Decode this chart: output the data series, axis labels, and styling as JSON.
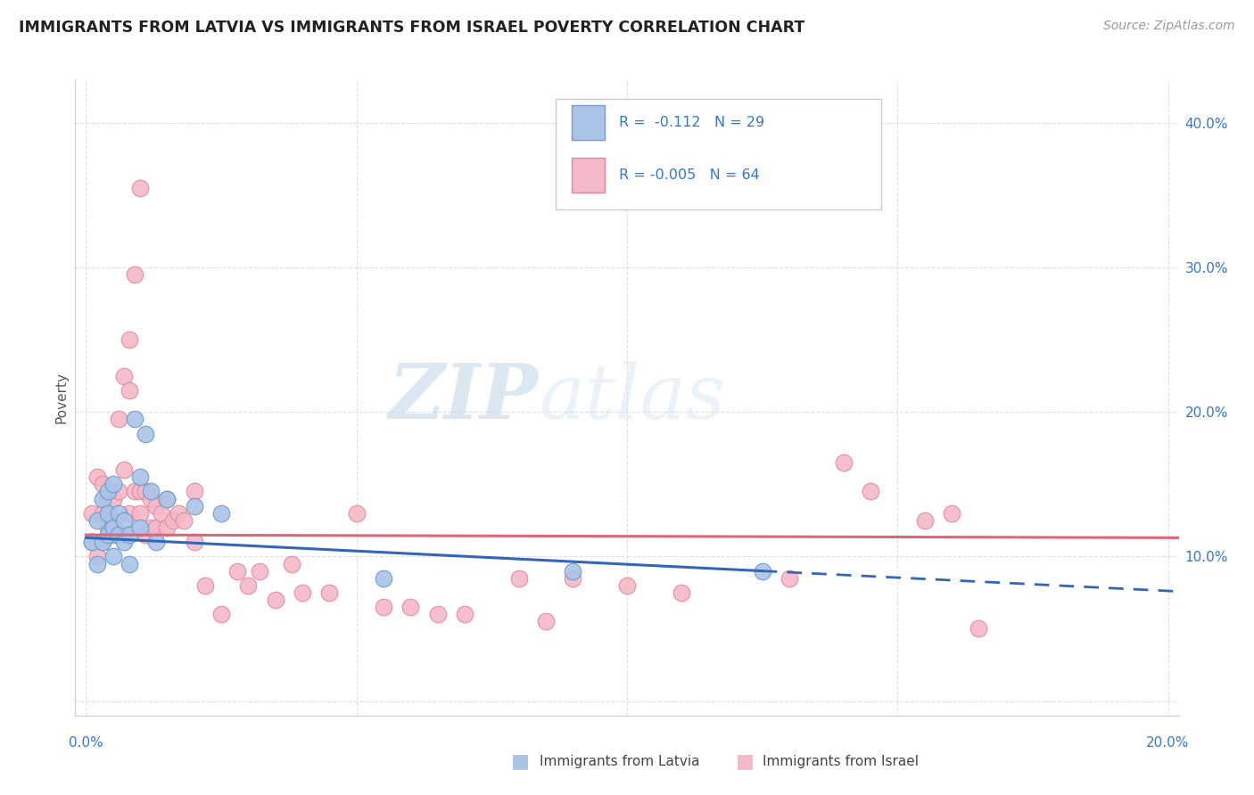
{
  "title": "IMMIGRANTS FROM LATVIA VS IMMIGRANTS FROM ISRAEL POVERTY CORRELATION CHART",
  "source": "Source: ZipAtlas.com",
  "ylabel": "Poverty",
  "y_ticks": [
    0.0,
    0.1,
    0.2,
    0.3,
    0.4
  ],
  "y_tick_labels": [
    "",
    "10.0%",
    "20.0%",
    "30.0%",
    "40.0%"
  ],
  "x_ticks": [
    0.0,
    0.05,
    0.1,
    0.15,
    0.2
  ],
  "xlim": [
    -0.002,
    0.202
  ],
  "ylim": [
    -0.01,
    0.43
  ],
  "watermark_zip": "ZIP",
  "watermark_atlas": "atlas",
  "series1_color": "#aac4e8",
  "series1_edge": "#6699cc",
  "series2_color": "#f5b8c8",
  "series2_edge": "#e08898",
  "trend1_color": "#3366bb",
  "trend2_color": "#dd6677",
  "grid_color": "#e0e0e0",
  "background_color": "#ffffff",
  "scatter1_x": [
    0.001,
    0.002,
    0.002,
    0.003,
    0.003,
    0.004,
    0.004,
    0.004,
    0.005,
    0.005,
    0.005,
    0.006,
    0.006,
    0.007,
    0.007,
    0.008,
    0.008,
    0.009,
    0.01,
    0.01,
    0.011,
    0.012,
    0.013,
    0.015,
    0.02,
    0.025,
    0.055,
    0.09,
    0.125
  ],
  "scatter1_y": [
    0.11,
    0.095,
    0.125,
    0.11,
    0.14,
    0.115,
    0.145,
    0.13,
    0.1,
    0.12,
    0.15,
    0.115,
    0.13,
    0.11,
    0.125,
    0.115,
    0.095,
    0.195,
    0.12,
    0.155,
    0.185,
    0.145,
    0.11,
    0.14,
    0.135,
    0.13,
    0.085,
    0.09,
    0.09
  ],
  "scatter2_x": [
    0.001,
    0.001,
    0.002,
    0.002,
    0.003,
    0.003,
    0.003,
    0.004,
    0.004,
    0.005,
    0.005,
    0.005,
    0.006,
    0.006,
    0.007,
    0.007,
    0.007,
    0.008,
    0.008,
    0.008,
    0.009,
    0.009,
    0.01,
    0.01,
    0.01,
    0.011,
    0.011,
    0.012,
    0.012,
    0.013,
    0.013,
    0.014,
    0.015,
    0.015,
    0.016,
    0.017,
    0.018,
    0.02,
    0.02,
    0.022,
    0.025,
    0.028,
    0.03,
    0.032,
    0.035,
    0.038,
    0.04,
    0.045,
    0.05,
    0.055,
    0.06,
    0.065,
    0.07,
    0.08,
    0.085,
    0.09,
    0.1,
    0.11,
    0.13,
    0.14,
    0.145,
    0.155,
    0.16,
    0.165
  ],
  "scatter2_y": [
    0.11,
    0.13,
    0.1,
    0.155,
    0.13,
    0.11,
    0.15,
    0.12,
    0.14,
    0.14,
    0.115,
    0.125,
    0.145,
    0.195,
    0.115,
    0.225,
    0.16,
    0.13,
    0.215,
    0.25,
    0.145,
    0.295,
    0.13,
    0.355,
    0.145,
    0.115,
    0.145,
    0.12,
    0.14,
    0.135,
    0.12,
    0.13,
    0.14,
    0.12,
    0.125,
    0.13,
    0.125,
    0.145,
    0.11,
    0.08,
    0.06,
    0.09,
    0.08,
    0.09,
    0.07,
    0.095,
    0.075,
    0.075,
    0.13,
    0.065,
    0.065,
    0.06,
    0.06,
    0.085,
    0.055,
    0.085,
    0.08,
    0.075,
    0.085,
    0.165,
    0.145,
    0.125,
    0.13,
    0.05
  ]
}
